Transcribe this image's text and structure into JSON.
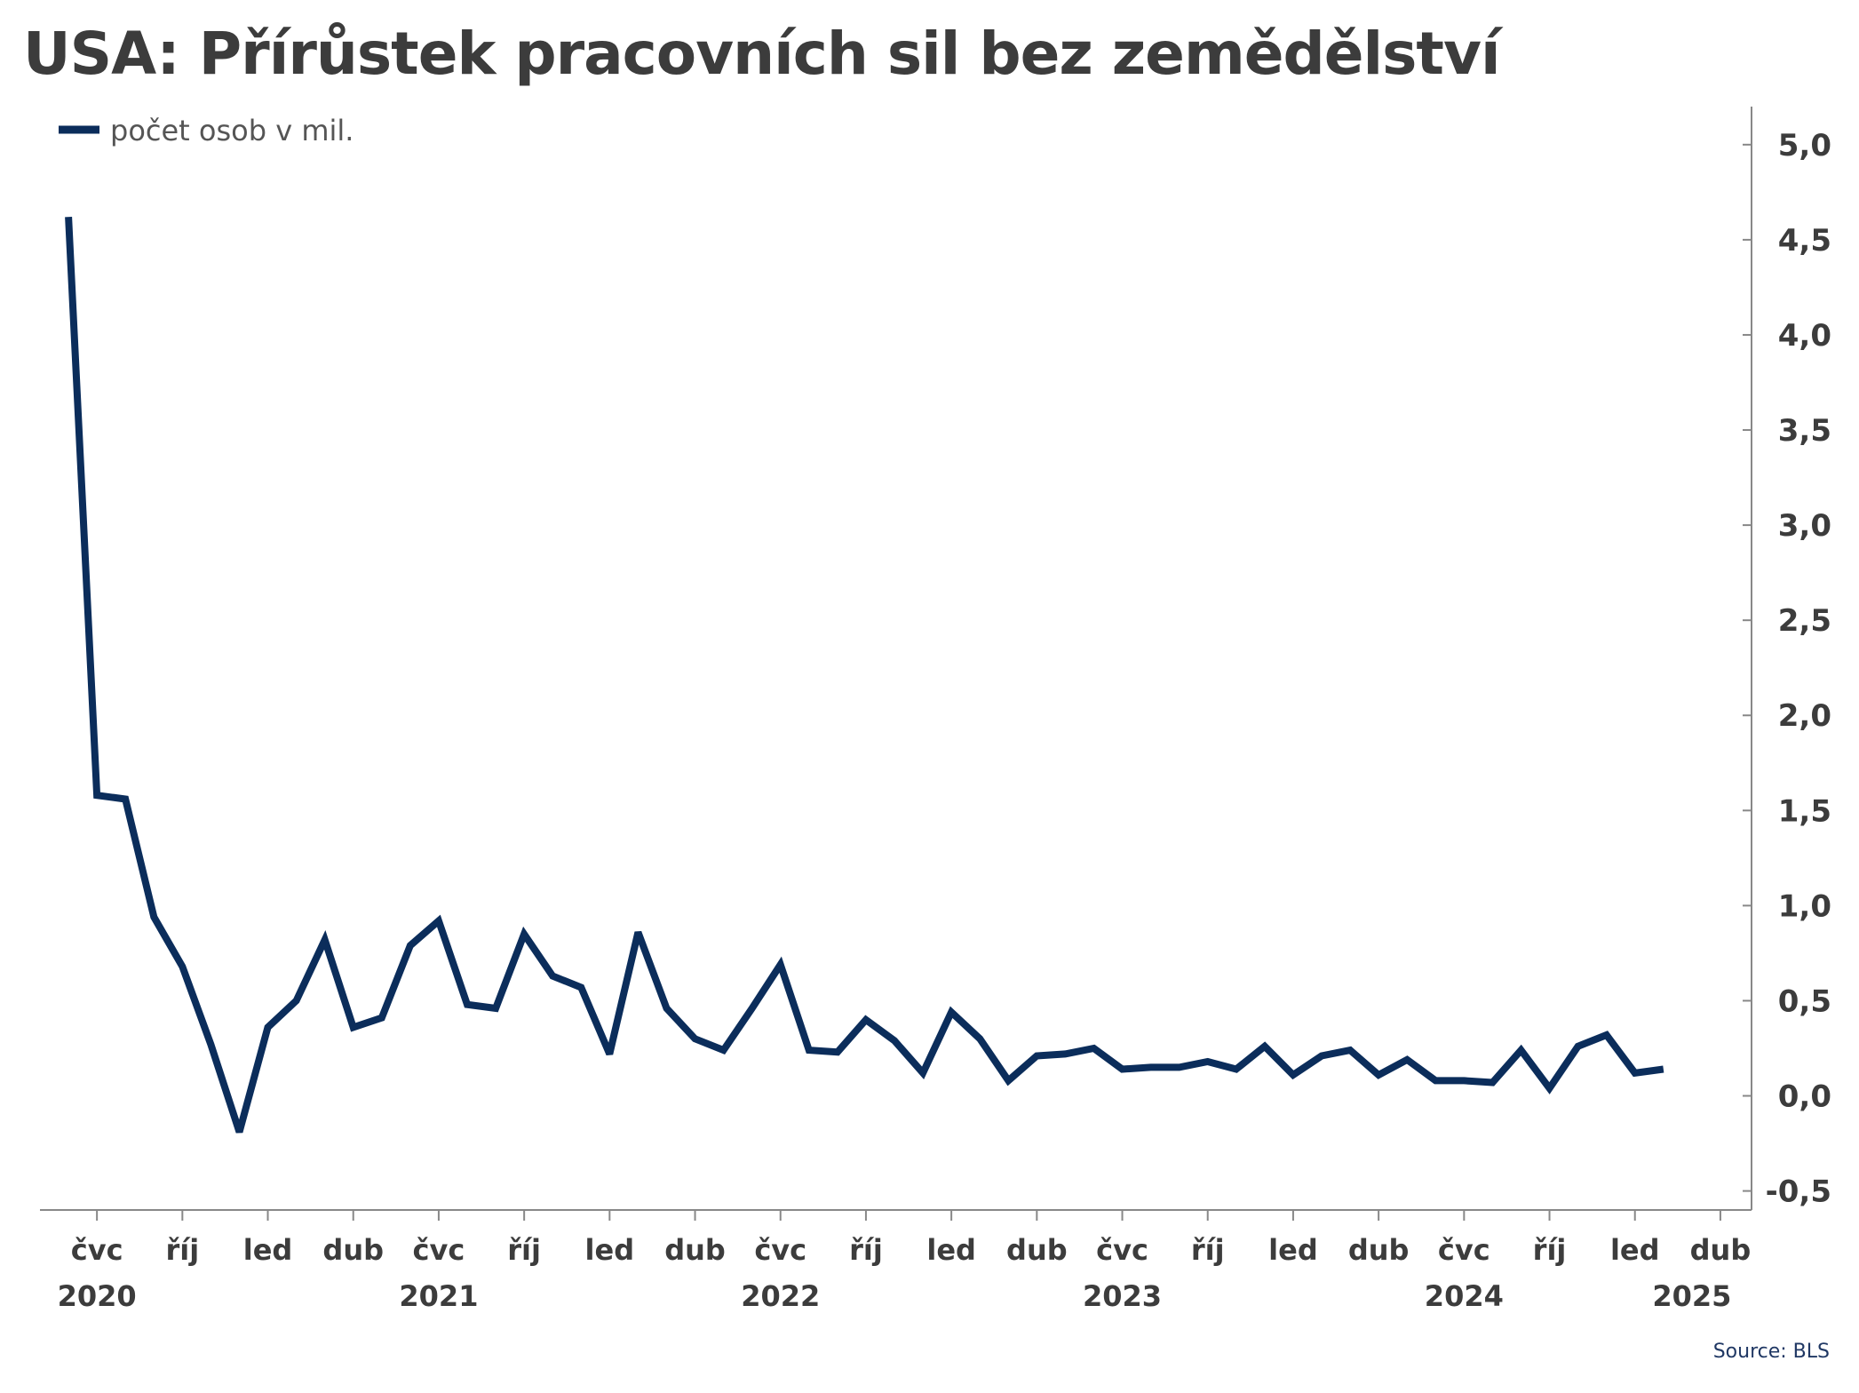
{
  "chart_data": {
    "type": "line",
    "title": "USA: Přírůstek pracovních sil bez zemědělství",
    "series": [
      {
        "name": "počet osob v mil.",
        "color": "#0b2d5b",
        "x": [
          "2020-06",
          "2020-07",
          "2020-08",
          "2020-09",
          "2020-10",
          "2020-11",
          "2020-12",
          "2021-01",
          "2021-02",
          "2021-03",
          "2021-04",
          "2021-05",
          "2021-06",
          "2021-07",
          "2021-08",
          "2021-09",
          "2021-10",
          "2021-11",
          "2021-12",
          "2022-01",
          "2022-02",
          "2022-03",
          "2022-04",
          "2022-05",
          "2022-06",
          "2022-07",
          "2022-08",
          "2022-09",
          "2022-10",
          "2022-11",
          "2022-12",
          "2023-01",
          "2023-02",
          "2023-03",
          "2023-04",
          "2023-05",
          "2023-06",
          "2023-07",
          "2023-08",
          "2023-09",
          "2023-10",
          "2023-11",
          "2023-12",
          "2024-01",
          "2024-02",
          "2024-03",
          "2024-04",
          "2024-05",
          "2024-06",
          "2024-07",
          "2024-08",
          "2024-09",
          "2024-10",
          "2024-11",
          "2024-12",
          "2025-01",
          "2025-02",
          "2025-03"
        ],
        "values": [
          4.62,
          1.58,
          1.56,
          0.94,
          0.68,
          0.27,
          -0.19,
          0.36,
          0.5,
          0.82,
          0.36,
          0.41,
          0.79,
          0.92,
          0.48,
          0.46,
          0.85,
          0.63,
          0.57,
          0.22,
          0.86,
          0.46,
          0.3,
          0.24,
          0.46,
          0.69,
          0.24,
          0.23,
          0.4,
          0.29,
          0.12,
          0.44,
          0.3,
          0.08,
          0.21,
          0.22,
          0.25,
          0.14,
          0.15,
          0.15,
          0.18,
          0.14,
          0.26,
          0.11,
          0.21,
          0.24,
          0.11,
          0.19,
          0.08,
          0.08,
          0.07,
          0.24,
          0.04,
          0.26,
          0.32,
          0.12,
          0.14,
          null
        ]
      }
    ],
    "y_axis": {
      "position": "right",
      "min": -0.6,
      "max": 5.2,
      "ticks": [
        -0.5,
        0,
        0.5,
        1,
        1.5,
        2,
        2.5,
        3,
        3.5,
        4,
        4.5,
        5
      ],
      "tick_labels": [
        "-0,5",
        "0,0",
        "0,5",
        "1,0",
        "1,5",
        "2,0",
        "2,5",
        "3,0",
        "3,5",
        "4,0",
        "4,5",
        "5,0"
      ]
    },
    "x_axis": {
      "start": "2020-05",
      "end": "2025-05",
      "tick_labels": [
        {
          "date": "2020-07",
          "label": "čvc"
        },
        {
          "date": "2020-10",
          "label": "říj"
        },
        {
          "date": "2021-01",
          "label": "led"
        },
        {
          "date": "2021-04",
          "label": "dub"
        },
        {
          "date": "2021-07",
          "label": "čvc"
        },
        {
          "date": "2021-10",
          "label": "říj"
        },
        {
          "date": "2022-01",
          "label": "led"
        },
        {
          "date": "2022-04",
          "label": "dub"
        },
        {
          "date": "2022-07",
          "label": "čvc"
        },
        {
          "date": "2022-10",
          "label": "říj"
        },
        {
          "date": "2023-01",
          "label": "led"
        },
        {
          "date": "2023-04",
          "label": "dub"
        },
        {
          "date": "2023-07",
          "label": "čvc"
        },
        {
          "date": "2023-10",
          "label": "říj"
        },
        {
          "date": "2024-01",
          "label": "led"
        },
        {
          "date": "2024-04",
          "label": "dub"
        },
        {
          "date": "2024-07",
          "label": "čvc"
        },
        {
          "date": "2024-10",
          "label": "říj"
        },
        {
          "date": "2025-01",
          "label": "led"
        },
        {
          "date": "2025-04",
          "label": "dub"
        }
      ],
      "year_labels": [
        {
          "date": "2020-07",
          "label": "2020"
        },
        {
          "date": "2021-07",
          "label": "2021"
        },
        {
          "date": "2022-07",
          "label": "2022"
        },
        {
          "date": "2023-07",
          "label": "2023"
        },
        {
          "date": "2024-07",
          "label": "2024"
        },
        {
          "date": "2025-03",
          "label": "2025"
        }
      ]
    },
    "grid": false,
    "legend": "top-left",
    "source": "Source: BLS"
  }
}
